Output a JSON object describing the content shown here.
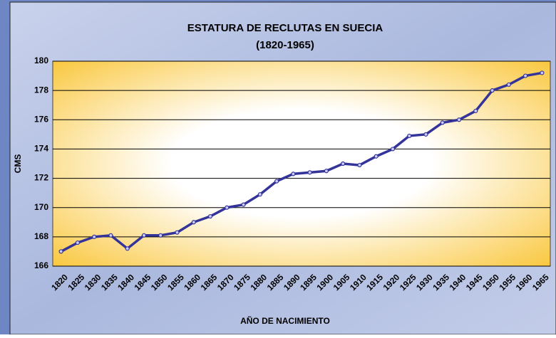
{
  "chart_data": {
    "type": "line",
    "title": "ESTATURA DE RECLUTAS EN SUECIA",
    "subtitle": "(1820-1965)",
    "x_label": "AÑO DE NACIMIENTO",
    "y_label": "CMS",
    "categories": [
      "1820",
      "1825",
      "1830",
      "1835",
      "1840",
      "1845",
      "1850",
      "1855",
      "1860",
      "1865",
      "1870",
      "1875",
      "1880",
      "1885",
      "1890",
      "1895",
      "1900",
      "1905",
      "1910",
      "1915",
      "1920",
      "1925",
      "1930",
      "1935",
      "1940",
      "1945",
      "1950",
      "1955",
      "1960",
      "1965"
    ],
    "values": [
      167.0,
      167.6,
      168.0,
      168.1,
      167.2,
      168.1,
      168.1,
      168.3,
      169.0,
      169.4,
      170.0,
      170.2,
      170.9,
      171.8,
      172.3,
      172.4,
      172.5,
      173.0,
      172.9,
      173.5,
      174.0,
      174.9,
      175.0,
      175.8,
      176.0,
      176.6,
      178.0,
      178.4,
      179.0,
      179.2
    ],
    "color": "#333399",
    "ylim": [
      166,
      180
    ],
    "yticks": [
      166,
      168,
      170,
      172,
      174,
      176,
      178,
      180
    ],
    "grid": true
  }
}
